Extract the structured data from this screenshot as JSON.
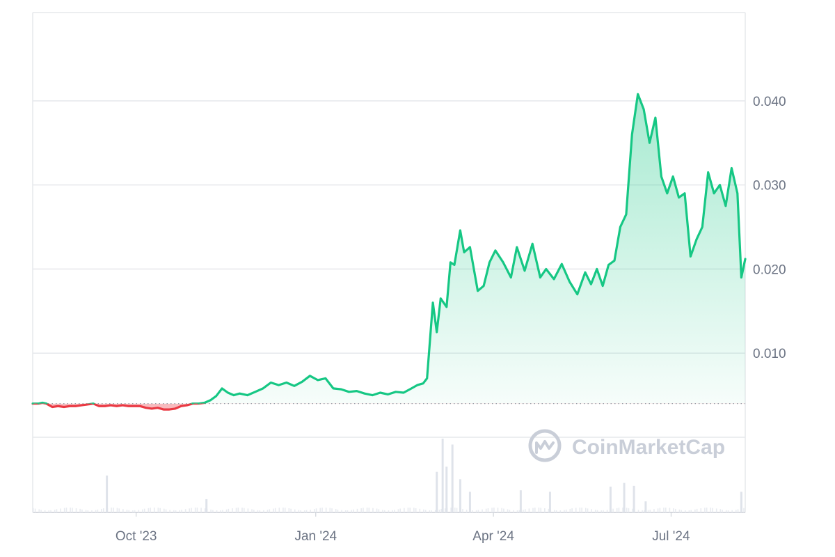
{
  "watermark": "CoinMarketCap",
  "chart_data": {
    "type": "area",
    "y_ticks": [
      0.01,
      0.02,
      0.03,
      0.04
    ],
    "y_tick_labels": [
      "0.010",
      "0.020",
      "0.030",
      "0.040"
    ],
    "ylim": [
      0,
      0.0505
    ],
    "x_ticks": [
      "2023-10-01",
      "2024-01-01",
      "2024-04-01",
      "2024-07-01"
    ],
    "x_tick_labels": [
      "Oct '23",
      "Jan '24",
      "Apr '24",
      "Jul '24"
    ],
    "xlim": [
      "2023-08-09",
      "2024-08-08"
    ],
    "baseline": 0.004,
    "grid": true,
    "colors": {
      "up": "#16c784",
      "down": "#ea3943",
      "grid": "#e6e8ec",
      "volume": "#e8ebf0"
    },
    "series": [
      {
        "x": [
          "2023-08-09",
          "2023-08-12",
          "2023-08-14",
          "2023-08-16",
          "2023-08-19",
          "2023-08-22",
          "2023-08-25",
          "2023-08-28",
          "2023-08-31",
          "2023-09-03",
          "2023-09-06",
          "2023-09-09",
          "2023-09-12",
          "2023-09-15",
          "2023-09-18",
          "2023-09-21",
          "2023-09-24",
          "2023-09-27",
          "2023-09-30",
          "2023-10-03",
          "2023-10-06",
          "2023-10-09",
          "2023-10-12",
          "2023-10-15",
          "2023-10-18",
          "2023-10-21",
          "2023-10-24",
          "2023-10-27",
          "2023-10-30",
          "2023-11-02",
          "2023-11-05",
          "2023-11-08",
          "2023-11-11",
          "2023-11-14",
          "2023-11-17",
          "2023-11-20",
          "2023-11-23",
          "2023-11-27",
          "2023-12-01",
          "2023-12-05",
          "2023-12-09",
          "2023-12-13",
          "2023-12-17",
          "2023-12-21",
          "2023-12-25",
          "2023-12-29",
          "2024-01-02",
          "2024-01-06",
          "2024-01-10",
          "2024-01-14",
          "2024-01-18",
          "2024-01-22",
          "2024-01-26",
          "2024-01-30",
          "2024-02-03",
          "2024-02-07",
          "2024-02-11",
          "2024-02-15",
          "2024-02-19",
          "2024-02-22",
          "2024-02-25",
          "2024-02-27",
          "2024-03-01",
          "2024-03-03",
          "2024-03-05",
          "2024-03-08",
          "2024-03-10",
          "2024-03-12",
          "2024-03-15",
          "2024-03-17",
          "2024-03-20",
          "2024-03-24",
          "2024-03-27",
          "2024-03-30",
          "2024-04-02",
          "2024-04-06",
          "2024-04-10",
          "2024-04-13",
          "2024-04-17",
          "2024-04-21",
          "2024-04-25",
          "2024-04-28",
          "2024-05-02",
          "2024-05-06",
          "2024-05-10",
          "2024-05-14",
          "2024-05-18",
          "2024-05-21",
          "2024-05-24",
          "2024-05-27",
          "2024-05-30",
          "2024-06-02",
          "2024-06-05",
          "2024-06-08",
          "2024-06-11",
          "2024-06-14",
          "2024-06-17",
          "2024-06-20",
          "2024-06-23",
          "2024-06-26",
          "2024-06-29",
          "2024-07-02",
          "2024-07-05",
          "2024-07-08",
          "2024-07-11",
          "2024-07-14",
          "2024-07-17",
          "2024-07-20",
          "2024-07-23",
          "2024-07-26",
          "2024-07-29",
          "2024-08-01",
          "2024-08-04",
          "2024-08-06",
          "2024-08-08"
        ],
        "y": [
          0.004,
          0.004,
          0.0041,
          0.004,
          0.0036,
          0.0037,
          0.0036,
          0.0037,
          0.0037,
          0.0038,
          0.0039,
          0.004,
          0.0037,
          0.0037,
          0.0038,
          0.0037,
          0.0038,
          0.0037,
          0.0037,
          0.0037,
          0.0035,
          0.0034,
          0.0035,
          0.0033,
          0.0033,
          0.0034,
          0.0037,
          0.0038,
          0.004,
          0.004,
          0.0041,
          0.0044,
          0.0049,
          0.0058,
          0.0053,
          0.005,
          0.0052,
          0.005,
          0.0054,
          0.0058,
          0.0065,
          0.0062,
          0.0065,
          0.0061,
          0.0066,
          0.0073,
          0.0068,
          0.007,
          0.0058,
          0.0057,
          0.0054,
          0.0055,
          0.0052,
          0.005,
          0.0053,
          0.0051,
          0.0054,
          0.0053,
          0.0058,
          0.0062,
          0.0064,
          0.007,
          0.016,
          0.0125,
          0.0165,
          0.0155,
          0.0208,
          0.0205,
          0.0246,
          0.022,
          0.0226,
          0.0174,
          0.018,
          0.0208,
          0.0222,
          0.0208,
          0.019,
          0.0226,
          0.0198,
          0.023,
          0.019,
          0.02,
          0.0188,
          0.0206,
          0.0185,
          0.017,
          0.0196,
          0.0182,
          0.02,
          0.018,
          0.0205,
          0.021,
          0.025,
          0.0265,
          0.036,
          0.0408,
          0.039,
          0.035,
          0.038,
          0.031,
          0.029,
          0.031,
          0.0285,
          0.029,
          0.0215,
          0.0235,
          0.025,
          0.0315,
          0.029,
          0.03,
          0.0275,
          0.032,
          0.029,
          0.019,
          0.0212
        ]
      }
    ],
    "volume": {
      "x": [
        "2023-09-16",
        "2023-11-06",
        "2024-03-03",
        "2024-03-06",
        "2024-03-08",
        "2024-03-11",
        "2024-03-15",
        "2024-03-20",
        "2024-04-15",
        "2024-04-30",
        "2024-05-31",
        "2024-06-07",
        "2024-06-12",
        "2024-06-18",
        "2024-08-06"
      ],
      "values": [
        0.5,
        0.18,
        0.55,
        1.0,
        0.62,
        0.92,
        0.45,
        0.28,
        0.3,
        0.28,
        0.35,
        0.4,
        0.36,
        0.15,
        0.28
      ]
    }
  }
}
